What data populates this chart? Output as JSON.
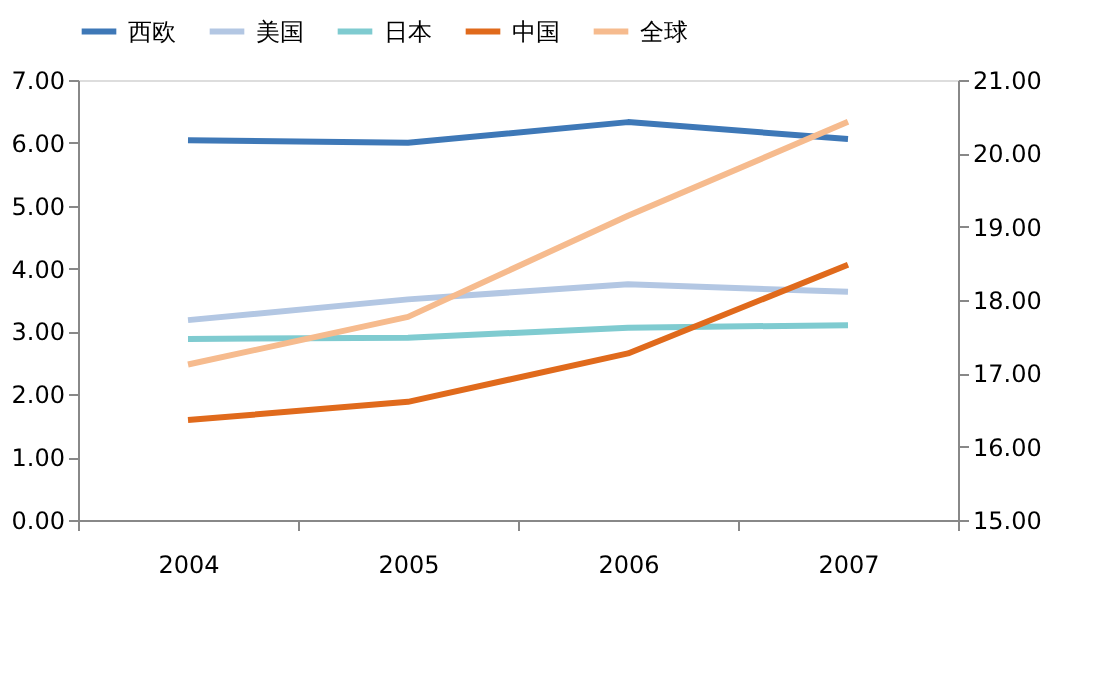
{
  "chart_data": {
    "type": "line",
    "categories": [
      "2004",
      "2005",
      "2006",
      "2007"
    ],
    "series": [
      {
        "name": "西欧",
        "color": "#3e78b7",
        "values": [
          6.04,
          6.0,
          6.33,
          6.06
        ]
      },
      {
        "name": "美国",
        "color": "#b3c7e3",
        "values": [
          3.18,
          3.51,
          3.75,
          3.63
        ]
      },
      {
        "name": "日本",
        "color": "#7fcbd0",
        "values": [
          2.88,
          2.9,
          3.06,
          3.1
        ]
      },
      {
        "name": "中国",
        "color": "#e06a1c",
        "values": [
          1.59,
          1.88,
          2.65,
          4.06
        ]
      },
      {
        "name": "全球",
        "color": "#f6bb8e",
        "values": [
          17.12,
          17.77,
          19.15,
          20.43
        ],
        "axis": "y2"
      }
    ],
    "ylim": [
      0,
      7
    ],
    "yticks": [
      {
        "value": 0,
        "label": "0.00"
      },
      {
        "value": 1,
        "label": "1.00"
      },
      {
        "value": 2,
        "label": "2.00"
      },
      {
        "value": 3,
        "label": "3.00"
      },
      {
        "value": 4,
        "label": "4.00"
      },
      {
        "value": 5,
        "label": "5.00"
      },
      {
        "value": 6,
        "label": "6.00"
      },
      {
        "value": 7,
        "label": "7.00"
      }
    ],
    "y2lim": [
      15,
      21
    ],
    "y2ticks": [
      {
        "value": 15,
        "label": "15.00"
      },
      {
        "value": 16,
        "label": "16.00"
      },
      {
        "value": 17,
        "label": "17.00"
      },
      {
        "value": 18,
        "label": "18.00"
      },
      {
        "value": 19,
        "label": "19.00"
      },
      {
        "value": 20,
        "label": "20.00"
      },
      {
        "value": 21,
        "label": "21.00"
      }
    ],
    "legend": "top",
    "grid": false,
    "marker": "none",
    "line_style": "solid"
  }
}
